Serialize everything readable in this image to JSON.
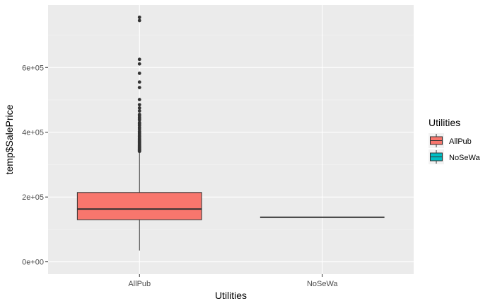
{
  "chart_data": {
    "type": "boxplot",
    "xlabel": "Utilities",
    "ylabel": "temp$SalePrice",
    "categories": [
      "AllPub",
      "NoSeWa"
    ],
    "ylim": [
      0,
      755000
    ],
    "y_ticks": [
      {
        "value": 0,
        "label": "0e+00"
      },
      {
        "value": 200000,
        "label": "2e+05"
      },
      {
        "value": 400000,
        "label": "4e+05"
      },
      {
        "value": 600000,
        "label": "6e+05"
      }
    ],
    "grid": true,
    "legend": {
      "title": "Utilities",
      "position": "right",
      "entries": [
        {
          "label": "AllPub",
          "color": "#F8766D"
        },
        {
          "label": "NoSeWa",
          "color": "#00BFC4"
        }
      ]
    },
    "boxes": [
      {
        "category": "AllPub",
        "color": "#F8766D",
        "min": 34900,
        "q1": 129900,
        "median": 163000,
        "q3": 214000,
        "max": 340000,
        "outliers": [
          341000,
          342000,
          344000,
          345000,
          346000,
          348000,
          350000,
          352000,
          354000,
          356000,
          358000,
          360000,
          362000,
          365000,
          368000,
          370000,
          372000,
          375000,
          378000,
          380000,
          384000,
          387000,
          390000,
          395000,
          399000,
          403000,
          410000,
          415000,
          421000,
          426000,
          430000,
          438000,
          441000,
          446000,
          451000,
          455000,
          466000,
          475000,
          485000,
          501000,
          538000,
          555000,
          582000,
          611000,
          625000,
          745000,
          755000
        ]
      },
      {
        "category": "NoSeWa",
        "color": "#00BFC4",
        "min": 137500,
        "q1": 137500,
        "median": 137500,
        "q3": 137500,
        "max": 137500,
        "outliers": []
      }
    ]
  },
  "colors": {
    "panel": "#EBEBEB",
    "grid_major": "#FFFFFF",
    "box_line": "#333333",
    "axis_text": "#4D4D4D"
  }
}
